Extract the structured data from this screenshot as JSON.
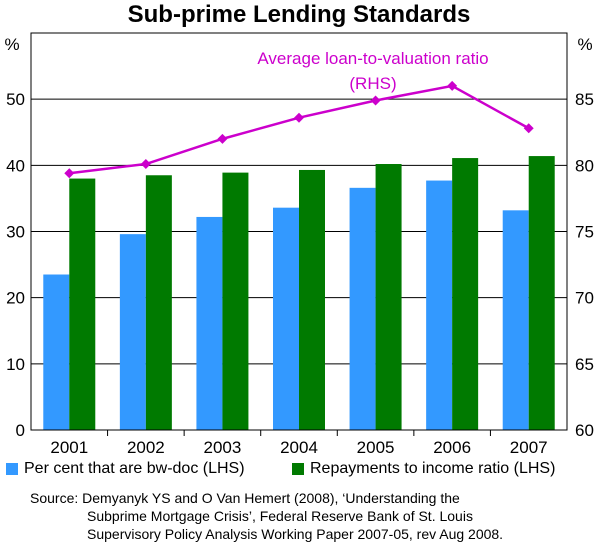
{
  "chart_data": {
    "type": "bar",
    "title": "Sub-prime Lending Standards",
    "categories": [
      "2001",
      "2002",
      "2003",
      "2004",
      "2005",
      "2006",
      "2007"
    ],
    "left_axis": {
      "unit": "%",
      "ylim": [
        0,
        60
      ],
      "ticks": [
        "0",
        "10",
        "20",
        "30",
        "40",
        "50"
      ]
    },
    "right_axis": {
      "unit": "%",
      "ylim": [
        60,
        90
      ],
      "ticks": [
        "60",
        "65",
        "70",
        "75",
        "80",
        "85"
      ]
    },
    "series": [
      {
        "name": "Per cent that are bw-doc",
        "axis_label": "(LHS)",
        "type": "bar",
        "axis": "left",
        "color": "#3399ff",
        "values": [
          23.5,
          29.6,
          32.2,
          33.6,
          36.6,
          37.7,
          33.2
        ]
      },
      {
        "name": "Repayments to income ratio",
        "axis_label": "(LHS)",
        "type": "bar",
        "axis": "left",
        "color": "#007a00",
        "values": [
          38.0,
          38.5,
          38.9,
          39.3,
          40.2,
          41.1,
          41.4
        ]
      },
      {
        "name": "Average loan-to-valuation ratio",
        "axis_label": "(RHS)",
        "type": "line",
        "axis": "right",
        "color": "#cc00cc",
        "values": [
          79.4,
          80.1,
          82.0,
          83.6,
          84.9,
          86.0,
          82.8
        ]
      }
    ],
    "grid": "horizontal",
    "annotation": {
      "line1": "Average loan-to-valuation ratio",
      "line2": "(RHS)"
    }
  },
  "legend": {
    "item1": "Per cent that are bw-doc (LHS)",
    "item2": "Repayments to income ratio (LHS)"
  },
  "source": {
    "line1": "Source:  Demyanyk YS and O Van Hemert (2008), ‘Understanding the",
    "line2": "Subprime Mortgage Crisis’, Federal Reserve Bank of St. Louis",
    "line3": "Supervisory Policy Analysis Working Paper 2007-05, rev Aug 2008."
  }
}
